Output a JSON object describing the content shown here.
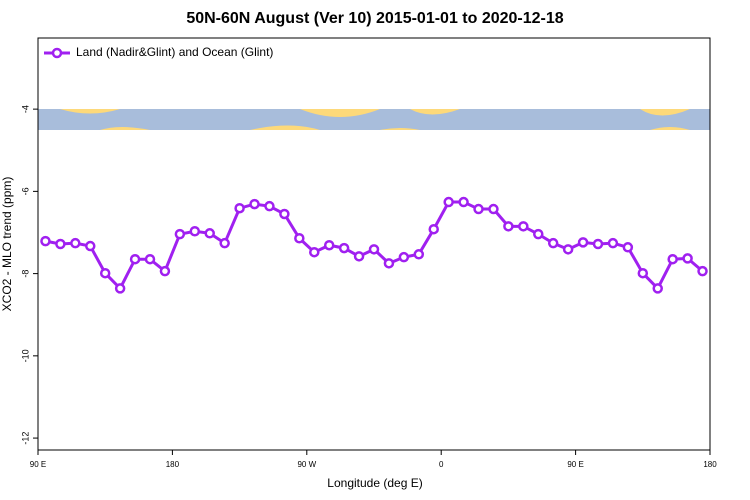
{
  "chart_data": {
    "type": "line",
    "title": "50N-60N August (Ver 10)   2015-01-01 to 2020-12-18",
    "x_label": "Longitude (deg E)",
    "y_label": "XCO2 - MLO trend (ppm)",
    "x": [
      95,
      105,
      115,
      125,
      135,
      145,
      155,
      165,
      175,
      185,
      195,
      205,
      215,
      225,
      235,
      245,
      255,
      265,
      275,
      285,
      295,
      305,
      315,
      325,
      335,
      345,
      355,
      365,
      375,
      385,
      395,
      405,
      415,
      425,
      435,
      445,
      455,
      465,
      475,
      485,
      495,
      505,
      515,
      525,
      535
    ],
    "series": [
      {
        "name": "Land (Nadir&Glint) and Ocean (Glint)",
        "color": "#a020f0",
        "values": [
          -7.21,
          -7.28,
          -7.26,
          -7.33,
          -7.99,
          -8.36,
          -7.65,
          -7.65,
          -7.94,
          -7.04,
          -6.97,
          -7.02,
          -7.26,
          -6.41,
          -6.31,
          -6.36,
          -6.55,
          -7.14,
          -7.48,
          -7.31,
          -7.38,
          -7.58,
          -7.41,
          -7.75,
          -7.6,
          -7.53,
          -6.92,
          -6.26,
          -6.26,
          -6.43,
          -6.43,
          -6.85,
          -6.85,
          -7.04,
          -7.26,
          -7.41,
          -7.24,
          -7.28,
          -7.26,
          -7.36,
          -7.99,
          -8.36,
          -7.65,
          -7.63,
          -7.94
        ]
      }
    ],
    "xlim": [
      90,
      540
    ],
    "xticks": [
      {
        "value": 90,
        "label": "90 E"
      },
      {
        "value": 180,
        "label": "180"
      },
      {
        "value": 270,
        "label": "90 W"
      },
      {
        "value": 360,
        "label": "0"
      },
      {
        "value": 450,
        "label": "90 E"
      },
      {
        "value": 540,
        "label": "180"
      }
    ],
    "ylim": [
      -12.29,
      -2.27
    ],
    "yticks": [
      -4,
      -6,
      -8,
      -10,
      -12
    ],
    "legend": "top-left"
  }
}
